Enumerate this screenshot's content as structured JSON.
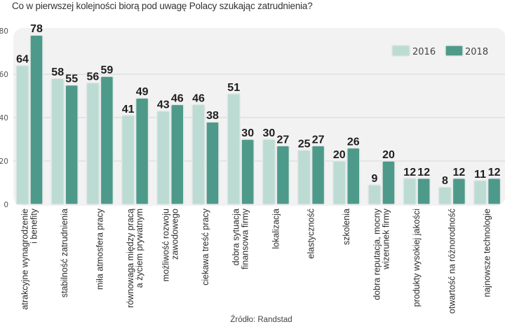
{
  "chart_data": {
    "type": "bar",
    "title": "Co w pierwszej kolejności biorą pod uwagę Polacy szukając zatrudnienia?",
    "source": "Źródło: Randstad",
    "xlabel": "",
    "ylabel": "",
    "ylim": [
      0,
      80
    ],
    "yticks": [
      0,
      20,
      40,
      60,
      80
    ],
    "grid": true,
    "legend_position": "top-right",
    "categories": [
      [
        "atrakcyjne wynagrodzenie",
        "i benefity"
      ],
      [
        "stabilność zatrudnienia"
      ],
      [
        "miła atmosfera pracy"
      ],
      [
        "równowaga między pracą",
        "a życiem prywatnym"
      ],
      [
        "możliwość rozwoju",
        "zawodowego"
      ],
      [
        "ciekawa treść pracy"
      ],
      [
        "dobra sytuacja",
        "finansowa firmy"
      ],
      [
        "lokalizacja"
      ],
      [
        "elastyczność"
      ],
      [
        "szkolenia"
      ],
      [
        "dobra reputacja, mocny",
        "wizerunek firmy"
      ],
      [
        "produkty wysokiej jakości"
      ],
      [
        "otwartość na różnorodność"
      ],
      [
        "najnowsze technologie"
      ]
    ],
    "series": [
      {
        "name": "2016",
        "color": "#bcdcd3",
        "values": [
          64,
          58,
          56,
          41,
          43,
          46,
          51,
          30,
          25,
          20,
          9,
          12,
          8,
          11
        ]
      },
      {
        "name": "2018",
        "color": "#4e9a8a",
        "values": [
          78,
          55,
          59,
          49,
          46,
          38,
          30,
          27,
          27,
          26,
          20,
          12,
          12,
          12
        ]
      }
    ]
  }
}
